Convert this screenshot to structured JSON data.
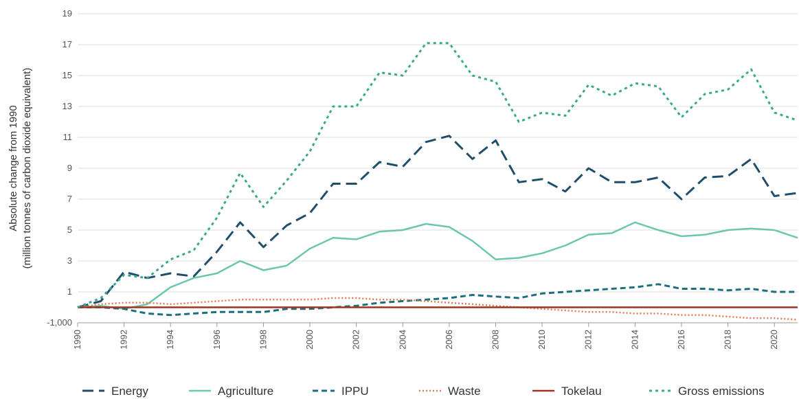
{
  "chart_data": {
    "type": "line",
    "ylabel": [
      "Absolute change from 1990",
      "(million tonnes of carbon dioxide equivalent)"
    ],
    "x": [
      1990,
      1991,
      1992,
      1993,
      1994,
      1995,
      1996,
      1997,
      1998,
      1999,
      2000,
      2001,
      2002,
      2003,
      2004,
      2005,
      2006,
      2007,
      2008,
      2009,
      2010,
      2011,
      2012,
      2013,
      2014,
      2015,
      2016,
      2017,
      2018,
      2019,
      2020,
      2021
    ],
    "xlim": [
      1990,
      2021
    ],
    "xticks": [
      1990,
      1992,
      1994,
      1996,
      1998,
      2000,
      2002,
      2004,
      2006,
      2008,
      2010,
      2012,
      2014,
      2016,
      2018,
      2020
    ],
    "ylim": [
      -1,
      19
    ],
    "yticks": [
      {
        "value": -1,
        "label": "-1,000"
      },
      1,
      3,
      5,
      7,
      9,
      11,
      13,
      15,
      17,
      19
    ],
    "grid": true,
    "legend": "bottom",
    "series": [
      {
        "name": "Energy",
        "color": "#1f4e6b",
        "style": "dashed",
        "values": [
          0,
          0.4,
          2.3,
          1.9,
          2.2,
          2.0,
          3.6,
          5.5,
          3.9,
          5.3,
          6.1,
          8.0,
          8.0,
          9.4,
          9.1,
          10.7,
          11.1,
          9.6,
          10.8,
          8.1,
          8.3,
          7.5,
          9.0,
          8.1,
          8.1,
          8.4,
          7.0,
          8.4,
          8.5,
          9.6,
          7.2,
          7.4
        ]
      },
      {
        "name": "Agriculture",
        "color": "#6cc5b0",
        "style": "solid",
        "values": [
          0,
          0.1,
          -0.1,
          0.2,
          1.3,
          1.9,
          2.2,
          3.0,
          2.4,
          2.7,
          3.8,
          4.5,
          4.4,
          4.9,
          5.0,
          5.4,
          5.2,
          4.3,
          3.1,
          3.2,
          3.5,
          4.0,
          4.7,
          4.8,
          5.5,
          5.0,
          4.6,
          4.7,
          5.0,
          5.1,
          5.0,
          4.5
        ]
      },
      {
        "name": "IPPU",
        "color": "#1c6f7c",
        "style": "shortdash",
        "values": [
          0,
          0,
          -0.1,
          -0.4,
          -0.5,
          -0.4,
          -0.3,
          -0.3,
          -0.3,
          -0.1,
          -0.1,
          0.0,
          0.1,
          0.3,
          0.4,
          0.5,
          0.6,
          0.8,
          0.7,
          0.6,
          0.9,
          1.0,
          1.1,
          1.2,
          1.3,
          1.5,
          1.2,
          1.2,
          1.1,
          1.2,
          1.0,
          1.0
        ]
      },
      {
        "name": "Waste",
        "color": "#e07a50",
        "style": "dotted",
        "values": [
          0,
          0.2,
          0.3,
          0.3,
          0.2,
          0.3,
          0.4,
          0.5,
          0.5,
          0.5,
          0.5,
          0.6,
          0.6,
          0.5,
          0.5,
          0.4,
          0.3,
          0.2,
          0.1,
          0.0,
          -0.1,
          -0.2,
          -0.3,
          -0.3,
          -0.4,
          -0.4,
          -0.5,
          -0.5,
          -0.6,
          -0.7,
          -0.7,
          -0.8
        ]
      },
      {
        "name": "Tokelau",
        "color": "#a0341e",
        "style": "solid",
        "values": [
          0,
          0,
          0,
          0,
          0,
          0,
          0,
          0,
          0,
          0,
          0,
          0,
          0,
          0,
          0,
          0,
          0,
          0,
          0,
          0,
          0,
          0,
          0,
          0,
          0,
          0,
          0,
          0,
          0,
          0,
          0,
          0
        ]
      },
      {
        "name": "Gross emissions",
        "color": "#3aa88f",
        "style": "dotted-wide",
        "values": [
          0,
          0.6,
          2.1,
          1.9,
          3.1,
          3.7,
          5.8,
          8.7,
          6.5,
          8.2,
          10.1,
          13.0,
          13.0,
          15.2,
          15.0,
          17.1,
          17.1,
          15.0,
          14.6,
          12.0,
          12.6,
          12.4,
          14.4,
          13.7,
          14.5,
          14.3,
          12.3,
          13.8,
          14.1,
          15.4,
          12.6,
          12.1
        ]
      }
    ]
  }
}
